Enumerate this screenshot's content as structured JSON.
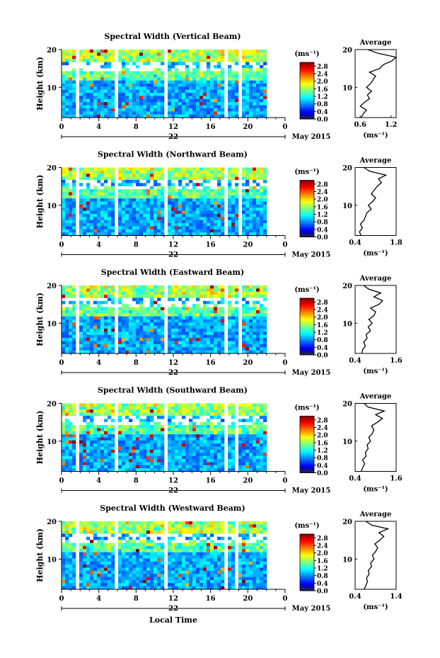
{
  "figure": {
    "xlabel": "Local Time",
    "date_label": "May 2015",
    "day_label": "22",
    "unit_label": "(ms⁻¹)",
    "average_title": "Average",
    "average_xlabel": "(ms⁻¹)",
    "height_label": "Height (km)"
  },
  "chart_data": [
    {
      "type": "heatmap",
      "title": "Spectral Width (Vertical Beam)",
      "x_ticks": [
        "0",
        "4",
        "8",
        "12",
        "16",
        "20",
        "0"
      ],
      "y_ticks": [
        "20",
        "10"
      ],
      "xlim": [
        0,
        24
      ],
      "ylim": [
        2,
        20
      ],
      "colorbar_ticks": [
        "2.8",
        "2.4",
        "2.0",
        "1.6",
        "1.2",
        "0.8",
        "0.4",
        "0.0"
      ],
      "colorbar_range": [
        0,
        3.0
      ],
      "gaps_hours": [
        [
          1.6,
          2.0
        ],
        [
          5.6,
          5.9
        ],
        [
          10.9,
          11.3
        ],
        [
          17.6,
          17.9
        ],
        [
          18.8,
          19.3
        ]
      ],
      "average": {
        "x_ticks": [
          "0.6",
          "1.2"
        ],
        "xlim": [
          0.5,
          1.3
        ],
        "heights": [
          2,
          3,
          4,
          5,
          6,
          7,
          8,
          9,
          10,
          11,
          12,
          13,
          14,
          15,
          16,
          17,
          18,
          19,
          20
        ],
        "values": [
          0.62,
          0.66,
          0.72,
          0.6,
          0.68,
          0.78,
          0.74,
          0.82,
          0.72,
          0.8,
          0.85,
          0.9,
          0.78,
          0.98,
          1.05,
          1.22,
          1.3,
          0.95,
          0.75
        ]
      }
    },
    {
      "type": "heatmap",
      "title": "Spectral Width (Northward Beam)",
      "x_ticks": [
        "0",
        "4",
        "8",
        "12",
        "16",
        "20",
        "0"
      ],
      "y_ticks": [
        "20",
        "10"
      ],
      "xlim": [
        0,
        24
      ],
      "ylim": [
        2,
        20
      ],
      "colorbar_ticks": [
        "2.8",
        "2.4",
        "2.0",
        "1.6",
        "1.2",
        "0.8",
        "0.4",
        "0.0"
      ],
      "colorbar_range": [
        0,
        3.0
      ],
      "gaps_hours": [
        [
          1.6,
          2.0
        ],
        [
          5.6,
          5.9
        ],
        [
          10.9,
          11.3
        ],
        [
          17.6,
          17.9
        ],
        [
          19.0,
          19.2
        ]
      ],
      "average": {
        "x_ticks": [
          "0.4",
          "1.8"
        ],
        "xlim": [
          0.4,
          1.8
        ],
        "heights": [
          2,
          3,
          4,
          5,
          6,
          7,
          8,
          9,
          10,
          11,
          12,
          13,
          14,
          15,
          16,
          17,
          18,
          19,
          20
        ],
        "values": [
          0.6,
          0.55,
          0.65,
          0.58,
          0.7,
          0.75,
          0.8,
          0.95,
          0.85,
          1.0,
          1.1,
          0.95,
          1.05,
          1.15,
          1.3,
          1.2,
          1.45,
          0.9,
          0.7
        ]
      }
    },
    {
      "type": "heatmap",
      "title": "Spectral Width (Eastward Beam)",
      "x_ticks": [
        "0",
        "4",
        "8",
        "12",
        "16",
        "20",
        "0"
      ],
      "y_ticks": [
        "20",
        "10"
      ],
      "xlim": [
        0,
        24
      ],
      "ylim": [
        2,
        20
      ],
      "colorbar_ticks": [
        "2.8",
        "2.4",
        "2.0",
        "1.6",
        "1.2",
        "0.8",
        "0.4",
        "0.0"
      ],
      "colorbar_range": [
        0,
        3.0
      ],
      "gaps_hours": [
        [
          1.6,
          2.0
        ],
        [
          5.6,
          5.9
        ],
        [
          10.9,
          11.3
        ],
        [
          17.6,
          17.9
        ],
        [
          18.8,
          19.2
        ]
      ],
      "average": {
        "x_ticks": [
          "0.4",
          "1.6"
        ],
        "xlim": [
          0.4,
          1.6
        ],
        "heights": [
          2,
          3,
          4,
          5,
          6,
          7,
          8,
          9,
          10,
          11,
          12,
          13,
          14,
          15,
          16,
          17,
          18,
          19,
          20
        ],
        "values": [
          0.6,
          0.62,
          0.7,
          0.65,
          0.75,
          0.72,
          0.85,
          0.78,
          0.9,
          0.8,
          0.95,
          1.0,
          0.85,
          1.1,
          1.2,
          0.95,
          1.15,
          0.8,
          0.65
        ]
      }
    },
    {
      "type": "heatmap",
      "title": "Spectral Width (Southward Beam)",
      "x_ticks": [
        "0",
        "4",
        "8",
        "12",
        "16",
        "20",
        "0"
      ],
      "y_ticks": [
        "20",
        "10"
      ],
      "xlim": [
        0,
        24
      ],
      "ylim": [
        2,
        20
      ],
      "colorbar_ticks": [
        "2.8",
        "2.4",
        "2.0",
        "1.6",
        "1.2",
        "0.8",
        "0.4",
        "0.0"
      ],
      "colorbar_range": [
        0,
        3.0
      ],
      "gaps_hours": [
        [
          1.6,
          2.0
        ],
        [
          5.6,
          5.9
        ],
        [
          10.9,
          11.3
        ],
        [
          17.6,
          17.9
        ],
        [
          18.7,
          19.0
        ]
      ],
      "average": {
        "x_ticks": [
          "0.4",
          "1.6"
        ],
        "xlim": [
          0.4,
          1.6
        ],
        "heights": [
          2,
          3,
          4,
          5,
          6,
          7,
          8,
          9,
          10,
          11,
          12,
          13,
          14,
          15,
          16,
          17,
          18,
          19,
          20
        ],
        "values": [
          0.58,
          0.62,
          0.68,
          0.62,
          0.72,
          0.7,
          0.78,
          0.75,
          0.85,
          0.8,
          0.9,
          0.95,
          0.88,
          1.05,
          1.2,
          1.0,
          1.25,
          0.78,
          0.66
        ]
      }
    },
    {
      "type": "heatmap",
      "title": "Spectral Width (Westward Beam)",
      "x_ticks": [
        "0",
        "4",
        "8",
        "12",
        "16",
        "20",
        "0"
      ],
      "y_ticks": [
        "20",
        "10"
      ],
      "xlim": [
        0,
        24
      ],
      "ylim": [
        2,
        20
      ],
      "colorbar_ticks": [
        "2.8",
        "2.4",
        "2.0",
        "1.6",
        "1.2",
        "0.8",
        "0.4",
        "0.0"
      ],
      "colorbar_range": [
        0,
        3.0
      ],
      "gaps_hours": [
        [
          1.6,
          2.0
        ],
        [
          5.6,
          5.9
        ],
        [
          10.9,
          11.3
        ],
        [
          17.6,
          17.9
        ],
        [
          18.7,
          19.1
        ]
      ],
      "average": {
        "x_ticks": [
          "0.4",
          "1.4"
        ],
        "xlim": [
          0.4,
          1.4
        ],
        "heights": [
          2,
          3,
          4,
          5,
          6,
          7,
          8,
          9,
          10,
          11,
          12,
          13,
          14,
          15,
          16,
          17,
          18,
          19,
          20
        ],
        "values": [
          0.62,
          0.66,
          0.7,
          0.68,
          0.74,
          0.72,
          0.8,
          0.78,
          0.86,
          0.82,
          0.9,
          0.95,
          0.88,
          1.0,
          1.1,
          0.98,
          1.2,
          0.8,
          0.66
        ]
      }
    }
  ]
}
